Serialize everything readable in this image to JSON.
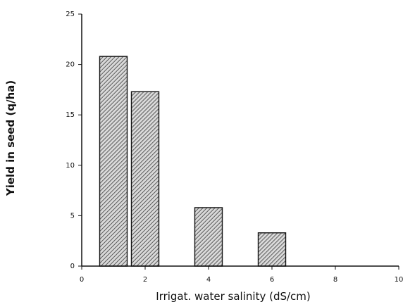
{
  "chart_data": {
    "type": "bar",
    "title": "",
    "xlabel": "Irrigat. water salinity (dS/cm)",
    "ylabel": "Yield in seed (q/ha)",
    "xlim": [
      0,
      10
    ],
    "ylim": [
      0,
      25
    ],
    "xticks": [
      0,
      2,
      4,
      6,
      8,
      10
    ],
    "yticks": [
      0,
      5,
      10,
      15,
      20,
      25
    ],
    "x_tick_labels": [
      "0",
      "2",
      "4",
      "6",
      "8",
      "10"
    ],
    "y_tick_labels": [
      "0",
      "5",
      "10",
      "15",
      "20",
      "25"
    ],
    "bars": [
      {
        "x": 1,
        "value": 20.8
      },
      {
        "x": 2,
        "value": 17.3
      },
      {
        "x": 4,
        "value": 5.8
      },
      {
        "x": 6,
        "value": 3.3
      }
    ],
    "grid": false,
    "colors": {
      "bar_fill": "#7a7a7a",
      "bar_stroke": "#111111",
      "axis": "#111111"
    }
  }
}
